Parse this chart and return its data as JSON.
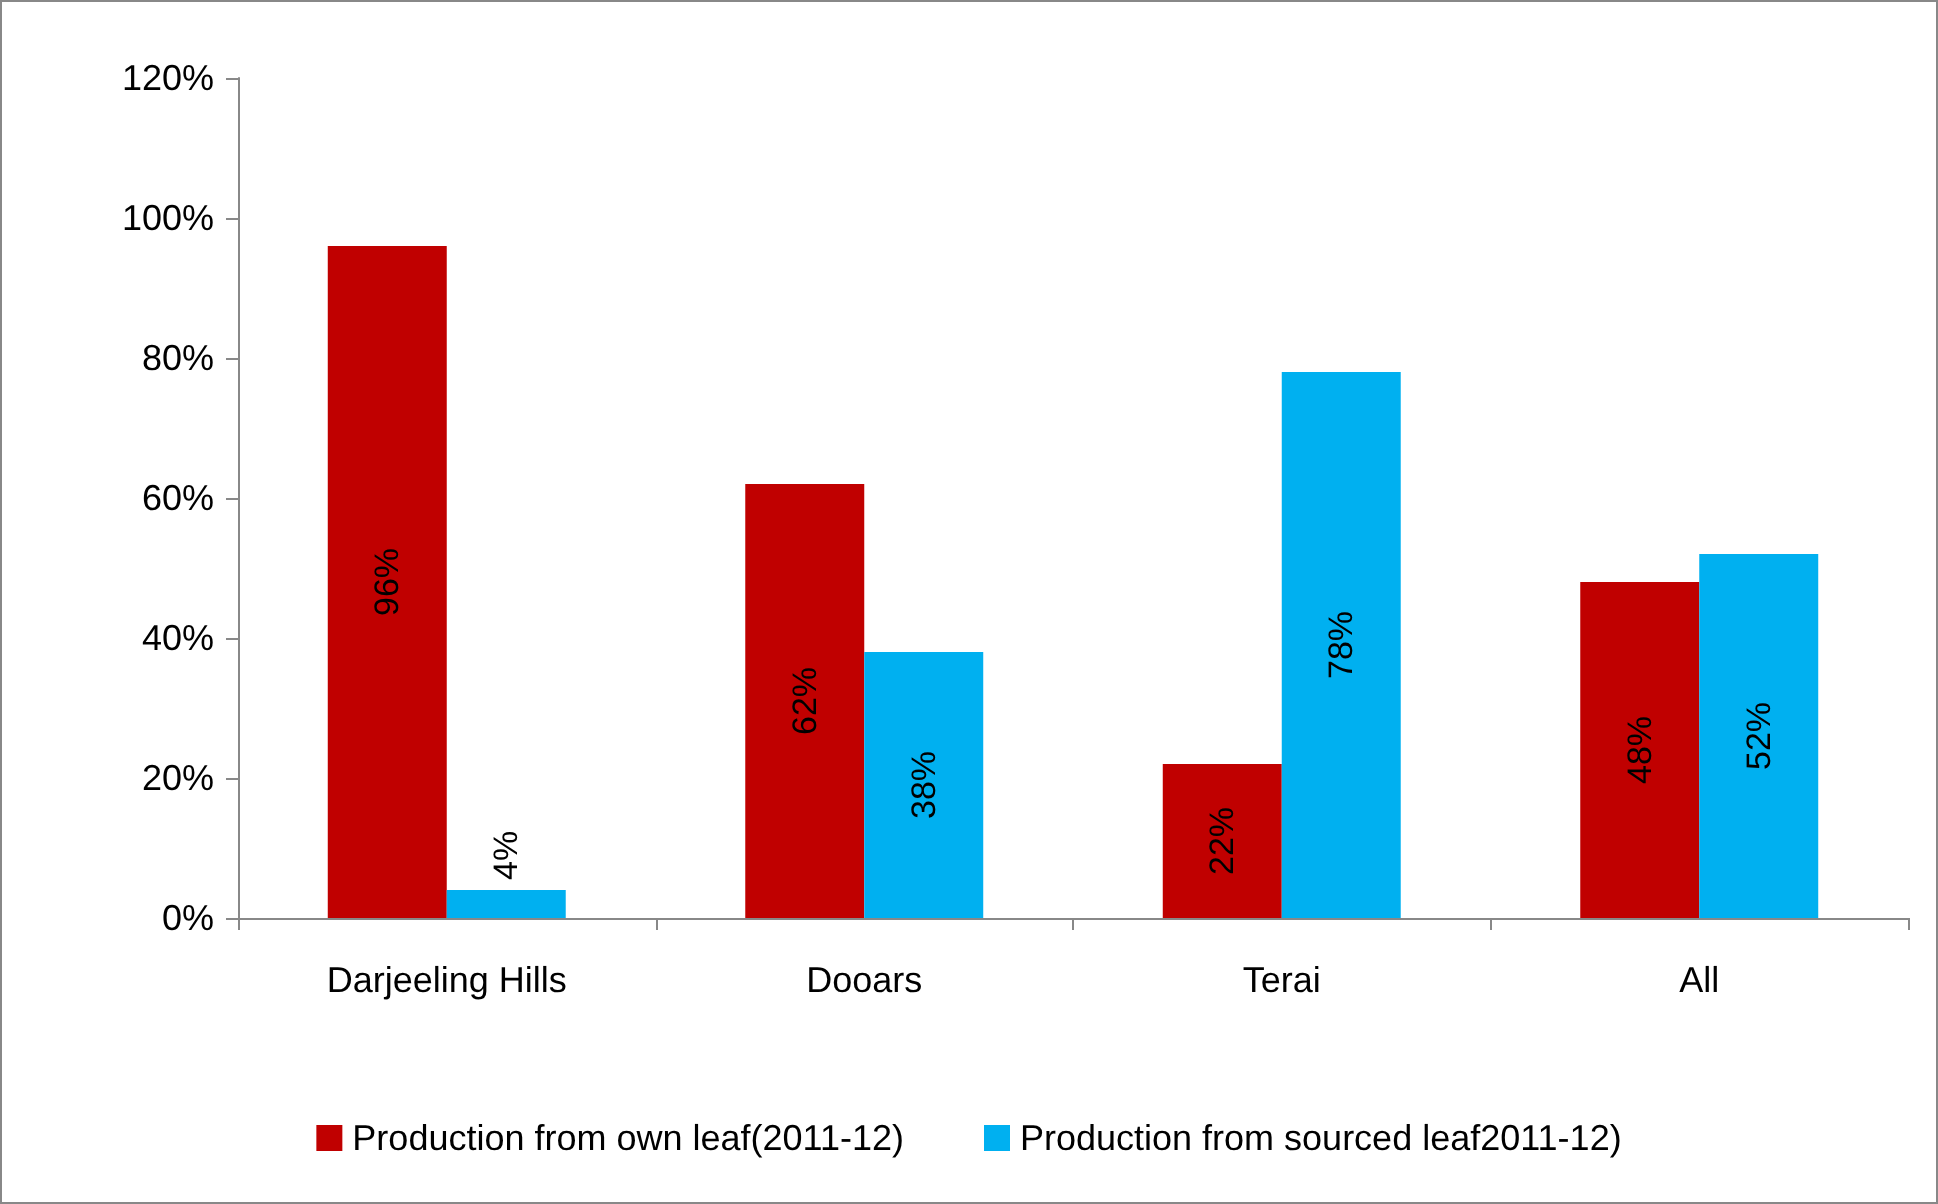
{
  "chart_data": {
    "type": "bar",
    "categories": [
      "Darjeeling Hills",
      "Dooars",
      "Terai",
      "All"
    ],
    "series": [
      {
        "name": "Production from own leaf(2011-12)",
        "color": "#c00000",
        "values": [
          96,
          62,
          22,
          48
        ],
        "value_labels": [
          "96%",
          "62%",
          "22%",
          "48%"
        ]
      },
      {
        "name": "Production from sourced leaf2011-12)",
        "color": "#00b0f0",
        "values": [
          4,
          38,
          78,
          52
        ],
        "value_labels": [
          "4%",
          "38%",
          "78%",
          "52%"
        ]
      }
    ],
    "ylim": [
      0,
      120
    ],
    "yticks": [
      {
        "value": 0,
        "label": "0%"
      },
      {
        "value": 20,
        "label": "20%"
      },
      {
        "value": 40,
        "label": "40%"
      },
      {
        "value": 60,
        "label": "60%"
      },
      {
        "value": 80,
        "label": "80%"
      },
      {
        "value": 100,
        "label": "100%"
      },
      {
        "value": 120,
        "label": "120%"
      }
    ],
    "grid": false,
    "legend": "bottom"
  }
}
